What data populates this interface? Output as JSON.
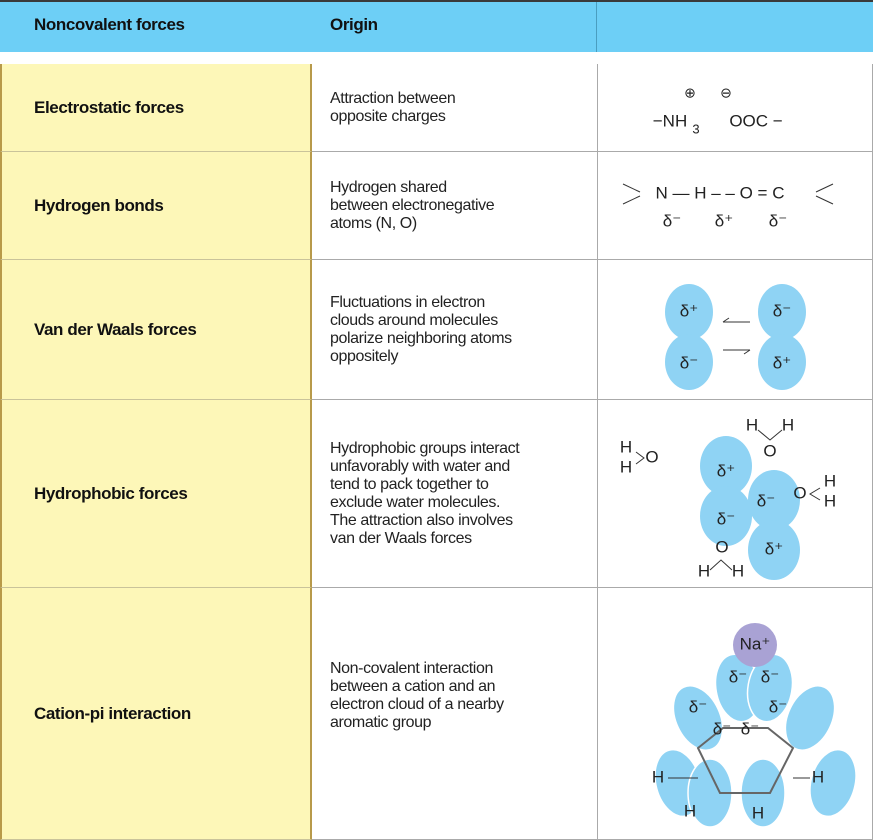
{
  "header": [
    "Noncovalent forces",
    "Origin"
  ],
  "rows": [
    {
      "force": "Electrostatic forces",
      "origin": [
        "Attraction between",
        "opposite charges"
      ],
      "diagram": [
        "−NH",
        "3",
        "⊕",
        "⊖",
        "OOC −"
      ]
    },
    {
      "force": "Hydrogen bonds",
      "origin": [
        "Hydrogen shared",
        "between electronegative",
        "atoms (N, O)"
      ],
      "diagram": [
        "N — H – – O = C",
        "δ⁻",
        "δ⁺",
        "δ⁻"
      ]
    },
    {
      "force": "Van der Waals forces",
      "origin": [
        "Fluctuations in electron",
        "clouds around molecules",
        "polarize neighboring atoms",
        "oppositely"
      ],
      "diagram": [
        "δ⁺",
        "δ⁻",
        "δ⁻",
        "δ⁺"
      ]
    },
    {
      "force": "Hydrophobic forces",
      "origin": [
        "Hydrophobic groups interact",
        "unfavorably with water and",
        "tend to pack together to",
        "exclude water molecules.",
        "The attraction also involves",
        "van der Waals forces"
      ],
      "diagram": [
        "H",
        "H",
        "O",
        "H",
        "H",
        "O",
        "O",
        "H",
        "H",
        "O",
        "H",
        "H",
        "δ⁺",
        "δ⁻",
        "δ⁻",
        "δ⁺"
      ]
    },
    {
      "force": "Cation-pi interaction",
      "origin": [
        "Non-covalent interaction",
        "between a cation and an",
        "electron cloud of a nearby",
        "aromatic group"
      ],
      "diagram": [
        "Na⁺",
        "δ⁻",
        "δ⁻",
        "δ⁻",
        "δ⁻",
        "δ⁻",
        "δ⁻",
        "H",
        "H",
        "H",
        "H"
      ]
    }
  ]
}
